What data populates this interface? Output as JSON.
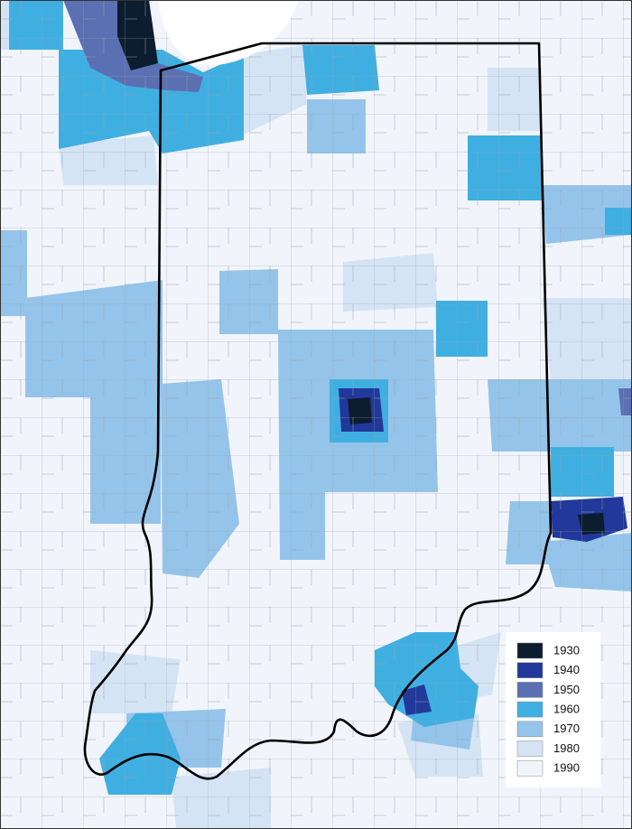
{
  "legend": {
    "items": [
      {
        "label": "1930",
        "color": "#0b1d2e"
      },
      {
        "label": "1940",
        "color": "#22389a"
      },
      {
        "label": "1950",
        "color": "#5b70b2"
      },
      {
        "label": "1960",
        "color": "#3fafe2"
      },
      {
        "label": "1970",
        "color": "#95c4ea"
      },
      {
        "label": "1980",
        "color": "#d5e4f5"
      },
      {
        "label": "1990",
        "color": "#f1f5fb"
      }
    ]
  }
}
